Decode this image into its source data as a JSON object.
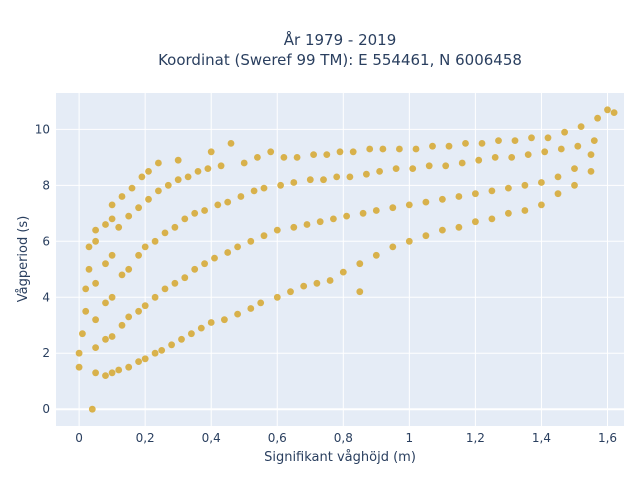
{
  "chart_data": {
    "type": "scatter",
    "title": [
      "År 1979 - 2019",
      "Koordinat (Sweref 99 TM): E 554461, N 6006458"
    ],
    "xlabel": "Signifikant våghöjd (m)",
    "ylabel": "Vågperiod (s)",
    "xlim": [
      -0.07,
      1.65
    ],
    "ylim": [
      -0.6,
      11.3
    ],
    "xticks": [
      0,
      0.2,
      0.4,
      0.6,
      0.8,
      1,
      1.2,
      1.4,
      1.6
    ],
    "xtick_labels": [
      "0",
      "0,2",
      "0,4",
      "0,6",
      "0,8",
      "1",
      "1,2",
      "1,4",
      "1,6"
    ],
    "yticks": [
      0,
      2,
      4,
      6,
      8,
      10
    ],
    "ytick_labels": [
      "0",
      "2",
      "4",
      "6",
      "8",
      "10"
    ],
    "grid": true,
    "legend": "none",
    "colors": {
      "marker": "#d4a320",
      "plot_bg": "#e5ecf6",
      "grid": "#ffffff",
      "text": "#2a3f5f"
    },
    "series": [
      {
        "points": [
          [
            0.04,
            0.0
          ],
          [
            0.0,
            1.5
          ],
          [
            0.0,
            2.0
          ],
          [
            0.01,
            2.7
          ],
          [
            0.02,
            3.5
          ],
          [
            0.02,
            4.3
          ],
          [
            0.03,
            5.0
          ],
          [
            0.03,
            5.8
          ],
          [
            0.05,
            1.3
          ],
          [
            0.05,
            2.2
          ],
          [
            0.05,
            3.2
          ],
          [
            0.05,
            4.5
          ],
          [
            0.05,
            6.0
          ],
          [
            0.05,
            6.4
          ],
          [
            0.08,
            1.2
          ],
          [
            0.08,
            2.5
          ],
          [
            0.08,
            3.8
          ],
          [
            0.08,
            5.2
          ],
          [
            0.08,
            6.6
          ],
          [
            0.1,
            1.3
          ],
          [
            0.1,
            2.6
          ],
          [
            0.1,
            4.0
          ],
          [
            0.1,
            5.5
          ],
          [
            0.1,
            6.8
          ],
          [
            0.1,
            7.3
          ],
          [
            0.12,
            1.4
          ],
          [
            0.13,
            3.0
          ],
          [
            0.13,
            4.8
          ],
          [
            0.12,
            6.5
          ],
          [
            0.13,
            7.6
          ],
          [
            0.15,
            1.5
          ],
          [
            0.15,
            3.3
          ],
          [
            0.15,
            5.0
          ],
          [
            0.15,
            6.9
          ],
          [
            0.16,
            7.9
          ],
          [
            0.18,
            1.7
          ],
          [
            0.18,
            3.5
          ],
          [
            0.18,
            5.5
          ],
          [
            0.18,
            7.2
          ],
          [
            0.19,
            8.3
          ],
          [
            0.2,
            1.8
          ],
          [
            0.2,
            3.7
          ],
          [
            0.2,
            5.8
          ],
          [
            0.21,
            7.5
          ],
          [
            0.21,
            8.5
          ],
          [
            0.23,
            2.0
          ],
          [
            0.23,
            4.0
          ],
          [
            0.23,
            6.0
          ],
          [
            0.24,
            7.8
          ],
          [
            0.24,
            8.8
          ],
          [
            0.25,
            2.1
          ],
          [
            0.26,
            4.3
          ],
          [
            0.26,
            6.3
          ],
          [
            0.27,
            8.0
          ],
          [
            0.28,
            2.3
          ],
          [
            0.29,
            4.5
          ],
          [
            0.29,
            6.5
          ],
          [
            0.3,
            8.2
          ],
          [
            0.3,
            8.9
          ],
          [
            0.31,
            2.5
          ],
          [
            0.32,
            4.7
          ],
          [
            0.32,
            6.8
          ],
          [
            0.33,
            8.3
          ],
          [
            0.34,
            2.7
          ],
          [
            0.35,
            5.0
          ],
          [
            0.35,
            7.0
          ],
          [
            0.36,
            8.5
          ],
          [
            0.37,
            2.9
          ],
          [
            0.38,
            5.2
          ],
          [
            0.38,
            7.1
          ],
          [
            0.39,
            8.6
          ],
          [
            0.4,
            9.2
          ],
          [
            0.4,
            3.1
          ],
          [
            0.41,
            5.4
          ],
          [
            0.42,
            7.3
          ],
          [
            0.43,
            8.7
          ],
          [
            0.44,
            3.2
          ],
          [
            0.45,
            5.6
          ],
          [
            0.45,
            7.4
          ],
          [
            0.46,
            9.5
          ],
          [
            0.48,
            3.4
          ],
          [
            0.48,
            5.8
          ],
          [
            0.49,
            7.6
          ],
          [
            0.5,
            8.8
          ],
          [
            0.52,
            3.6
          ],
          [
            0.52,
            6.0
          ],
          [
            0.53,
            7.8
          ],
          [
            0.54,
            9.0
          ],
          [
            0.55,
            3.8
          ],
          [
            0.56,
            6.2
          ],
          [
            0.56,
            7.9
          ],
          [
            0.58,
            9.2
          ],
          [
            0.6,
            4.0
          ],
          [
            0.6,
            6.4
          ],
          [
            0.61,
            8.0
          ],
          [
            0.62,
            9.0
          ],
          [
            0.64,
            4.2
          ],
          [
            0.65,
            6.5
          ],
          [
            0.65,
            8.1
          ],
          [
            0.66,
            9.0
          ],
          [
            0.68,
            4.4
          ],
          [
            0.69,
            6.6
          ],
          [
            0.7,
            8.2
          ],
          [
            0.71,
            9.1
          ],
          [
            0.72,
            4.5
          ],
          [
            0.73,
            6.7
          ],
          [
            0.74,
            8.2
          ],
          [
            0.75,
            9.1
          ],
          [
            0.76,
            4.6
          ],
          [
            0.77,
            6.8
          ],
          [
            0.78,
            8.3
          ],
          [
            0.79,
            9.2
          ],
          [
            0.8,
            4.9
          ],
          [
            0.81,
            6.9
          ],
          [
            0.82,
            8.3
          ],
          [
            0.83,
            9.2
          ],
          [
            0.85,
            4.2
          ],
          [
            0.85,
            5.2
          ],
          [
            0.86,
            7.0
          ],
          [
            0.87,
            8.4
          ],
          [
            0.88,
            9.3
          ],
          [
            0.9,
            5.5
          ],
          [
            0.9,
            7.1
          ],
          [
            0.91,
            8.5
          ],
          [
            0.92,
            9.3
          ],
          [
            0.95,
            5.8
          ],
          [
            0.95,
            7.2
          ],
          [
            0.96,
            8.6
          ],
          [
            0.97,
            9.3
          ],
          [
            1.0,
            6.0
          ],
          [
            1.0,
            7.3
          ],
          [
            1.01,
            8.6
          ],
          [
            1.02,
            9.3
          ],
          [
            1.05,
            6.2
          ],
          [
            1.05,
            7.4
          ],
          [
            1.06,
            8.7
          ],
          [
            1.07,
            9.4
          ],
          [
            1.1,
            6.4
          ],
          [
            1.1,
            7.5
          ],
          [
            1.11,
            8.7
          ],
          [
            1.12,
            9.4
          ],
          [
            1.15,
            6.5
          ],
          [
            1.15,
            7.6
          ],
          [
            1.16,
            8.8
          ],
          [
            1.17,
            9.5
          ],
          [
            1.2,
            6.7
          ],
          [
            1.2,
            7.7
          ],
          [
            1.21,
            8.9
          ],
          [
            1.22,
            9.5
          ],
          [
            1.25,
            6.8
          ],
          [
            1.25,
            7.8
          ],
          [
            1.26,
            9.0
          ],
          [
            1.27,
            9.6
          ],
          [
            1.3,
            7.0
          ],
          [
            1.3,
            7.9
          ],
          [
            1.31,
            9.0
          ],
          [
            1.32,
            9.6
          ],
          [
            1.35,
            7.1
          ],
          [
            1.35,
            8.0
          ],
          [
            1.36,
            9.1
          ],
          [
            1.37,
            9.7
          ],
          [
            1.4,
            7.3
          ],
          [
            1.4,
            8.1
          ],
          [
            1.41,
            9.2
          ],
          [
            1.42,
            9.7
          ],
          [
            1.45,
            7.7
          ],
          [
            1.45,
            8.3
          ],
          [
            1.46,
            9.3
          ],
          [
            1.47,
            9.9
          ],
          [
            1.5,
            8.0
          ],
          [
            1.5,
            8.6
          ],
          [
            1.51,
            9.4
          ],
          [
            1.52,
            10.1
          ],
          [
            1.55,
            8.5
          ],
          [
            1.55,
            9.1
          ],
          [
            1.56,
            9.6
          ],
          [
            1.57,
            10.4
          ],
          [
            1.6,
            10.7
          ],
          [
            1.62,
            10.6
          ]
        ]
      }
    ]
  }
}
